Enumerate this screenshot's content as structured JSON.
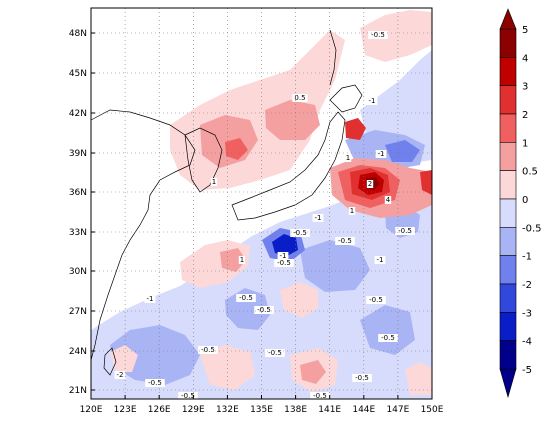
{
  "map": {
    "lat_ticks": [
      "48N",
      "45N",
      "42N",
      "39N",
      "36N",
      "33N",
      "30N",
      "27N",
      "24N",
      "21N"
    ],
    "lon_ticks": [
      "120E",
      "123E",
      "126E",
      "129E",
      "132E",
      "135E",
      "138E",
      "141E",
      "144E",
      "147E",
      "150E"
    ],
    "contour_labels": [
      "-0.5",
      "0.5",
      "1",
      "-1",
      "1",
      "-0.5",
      "-1",
      "2",
      "4",
      "1",
      "-0.5",
      "1",
      "-1",
      "-1",
      "-0.5",
      "-1",
      "-0.5",
      "-0.5",
      "-0.5",
      "-1",
      "-0.5",
      "-2",
      "-0.5",
      "-0.5",
      "-0.5",
      "-0.5",
      "-0.5",
      "-0.5",
      "-0.5"
    ]
  },
  "colorbar": {
    "labels": [
      "5",
      "4",
      "3",
      "2",
      "1",
      "0.5",
      "0",
      "-0.5",
      "-1",
      "-2",
      "-3",
      "-4",
      "-5"
    ],
    "colors": [
      "#8b0000",
      "#c00000",
      "#e03030",
      "#f06060",
      "#f4a0a0",
      "#fcd8d8",
      "#ffffff",
      "#d8dcfc",
      "#a8b4f4",
      "#7080ec",
      "#3048dc",
      "#0a1ec8",
      "#00008b"
    ]
  }
}
